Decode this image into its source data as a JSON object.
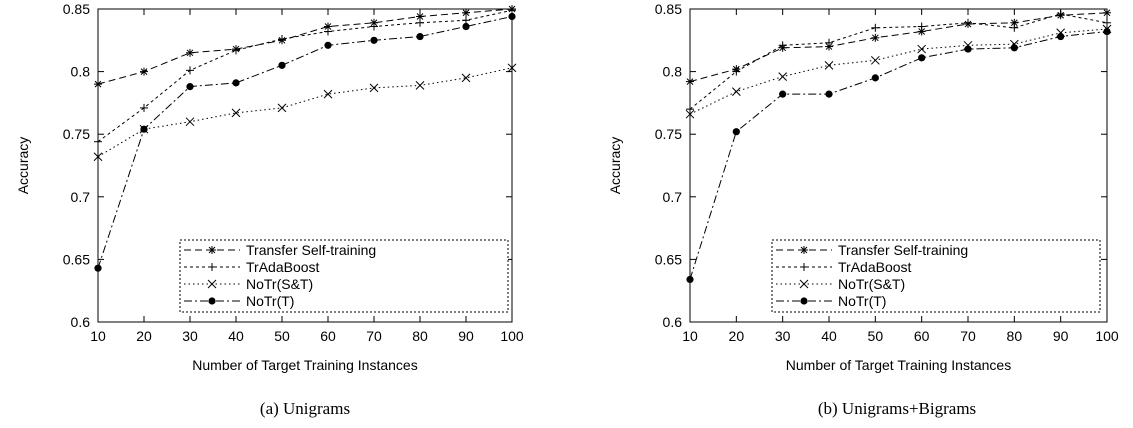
{
  "chart_data": [
    {
      "type": "line",
      "caption": "(a)  Unigrams",
      "xlabel": "Number of Target Training Instances",
      "ylabel": "Accuracy",
      "xlim": [
        10,
        100
      ],
      "ylim": [
        0.6,
        0.85
      ],
      "x_ticks": [
        "10",
        "20",
        "30",
        "40",
        "50",
        "60",
        "70",
        "80",
        "90",
        "100"
      ],
      "y_ticks": [
        "0.6",
        "0.65",
        "0.7",
        "0.75",
        "0.8",
        "0.85"
      ],
      "legend_position": "bottom-right",
      "x": [
        10,
        20,
        30,
        40,
        50,
        60,
        70,
        80,
        90,
        100
      ],
      "series": [
        {
          "name": "Transfer Self-training",
          "marker": "asterisk",
          "dash": "dashed",
          "values": [
            0.79,
            0.8,
            0.815,
            0.818,
            0.825,
            0.836,
            0.839,
            0.844,
            0.847,
            0.85
          ]
        },
        {
          "name": "TrAdaBoost",
          "marker": "plus",
          "dash": "dotted-dense",
          "values": [
            0.744,
            0.771,
            0.801,
            0.817,
            0.826,
            0.832,
            0.836,
            0.839,
            0.841,
            0.849
          ]
        },
        {
          "name": "NoTr(S&T)",
          "marker": "cross",
          "dash": "dotted",
          "values": [
            0.732,
            0.754,
            0.76,
            0.767,
            0.771,
            0.782,
            0.787,
            0.789,
            0.795,
            0.803
          ]
        },
        {
          "name": "NoTr(T)",
          "marker": "dot",
          "dash": "dash-dot",
          "values": [
            0.643,
            0.754,
            0.788,
            0.791,
            0.805,
            0.821,
            0.825,
            0.828,
            0.836,
            0.844
          ]
        }
      ]
    },
    {
      "type": "line",
      "caption": "(b)  Unigrams+Bigrams",
      "xlabel": "Number of Target Training Instances",
      "ylabel": "Accuracy",
      "xlim": [
        10,
        100
      ],
      "ylim": [
        0.6,
        0.85
      ],
      "x_ticks": [
        "10",
        "20",
        "30",
        "40",
        "50",
        "60",
        "70",
        "80",
        "90",
        "100"
      ],
      "y_ticks": [
        "0.6",
        "0.65",
        "0.7",
        "0.75",
        "0.8",
        "0.85"
      ],
      "legend_position": "bottom-right",
      "x": [
        10,
        20,
        30,
        40,
        50,
        60,
        70,
        80,
        90,
        100
      ],
      "series": [
        {
          "name": "Transfer Self-training",
          "marker": "asterisk",
          "dash": "dashed",
          "values": [
            0.792,
            0.802,
            0.819,
            0.82,
            0.827,
            0.832,
            0.838,
            0.839,
            0.845,
            0.847
          ]
        },
        {
          "name": "TrAdaBoost",
          "marker": "plus",
          "dash": "dotted-dense",
          "values": [
            0.77,
            0.8,
            0.821,
            0.823,
            0.835,
            0.836,
            0.839,
            0.835,
            0.846,
            0.839
          ]
        },
        {
          "name": "NoTr(S&T)",
          "marker": "cross",
          "dash": "dotted",
          "values": [
            0.766,
            0.784,
            0.796,
            0.805,
            0.809,
            0.818,
            0.821,
            0.822,
            0.831,
            0.834
          ]
        },
        {
          "name": "NoTr(T)",
          "marker": "dot",
          "dash": "dash-dot",
          "values": [
            0.634,
            0.752,
            0.782,
            0.782,
            0.795,
            0.811,
            0.818,
            0.819,
            0.828,
            0.832
          ]
        }
      ]
    }
  ]
}
